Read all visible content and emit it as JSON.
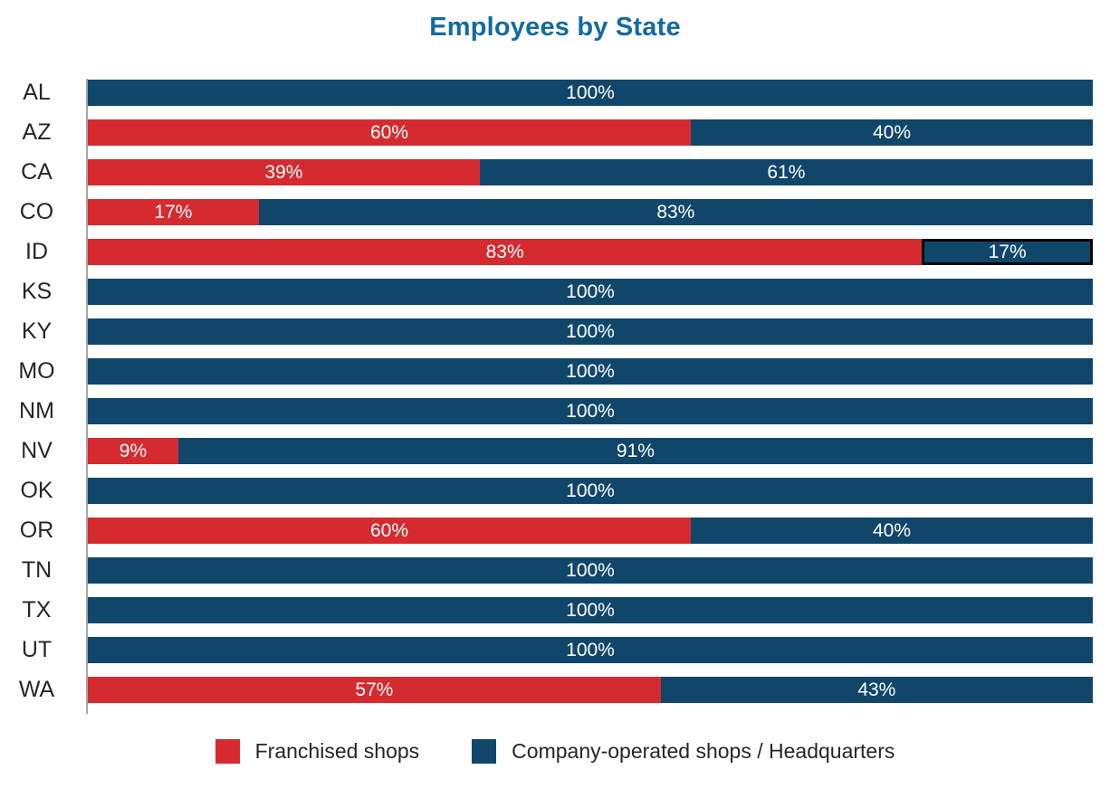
{
  "chart_data": {
    "type": "bar",
    "orientation": "horizontal",
    "stacked": true,
    "title": "Employees by State",
    "categories": [
      "AL",
      "AZ",
      "CA",
      "CO",
      "ID",
      "KS",
      "KY",
      "MO",
      "NM",
      "NV",
      "OK",
      "OR",
      "TN",
      "TX",
      "UT",
      "WA"
    ],
    "series": [
      {
        "name": "Franchised shops",
        "color": "#d52b30",
        "values": [
          0,
          60,
          39,
          17,
          83,
          0,
          0,
          0,
          0,
          9,
          0,
          60,
          0,
          0,
          0,
          57
        ]
      },
      {
        "name": "Company-operated shops / Headquarters",
        "color": "#11466b",
        "values": [
          100,
          40,
          61,
          83,
          17,
          100,
          100,
          100,
          100,
          91,
          100,
          40,
          100,
          100,
          100,
          43
        ]
      }
    ],
    "value_label_format": "{v}%",
    "xlim": [
      0,
      100
    ],
    "grid": false,
    "axis": "left-vertical-line-only",
    "legend_position": "bottom",
    "highlight": {
      "category": "ID",
      "series_index": 1,
      "border_color": "#000000"
    },
    "colors": {
      "title": "#136a9f",
      "axis_line": "#a6a6a6",
      "value_label": "#ffffff",
      "category_label": "#262626",
      "legend_text": "#262626",
      "background": "#ffffff"
    }
  }
}
